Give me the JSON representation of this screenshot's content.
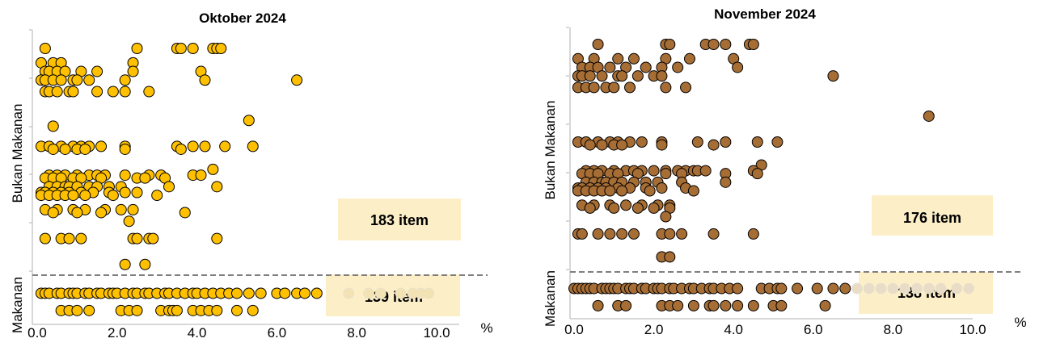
{
  "chart_data": [
    {
      "type": "scatter",
      "title": "Oktober 2024",
      "xlabel": "%",
      "ylabel_top": "Bukan Makanan",
      "ylabel_bottom": "Makanan",
      "xlim": [
        0,
        10
      ],
      "xticks": [
        "0.0",
        "2.0",
        "4.0",
        "6.0",
        "8.0",
        "10.0"
      ],
      "colors": {
        "point": "#FFC000",
        "point_faded": "#F3E3B4",
        "stroke": "#000000",
        "box": "#FCEFC8",
        "divider": "#7F7F7F"
      },
      "groups": [
        {
          "name": "Bukan Makanan",
          "count_label": "183 item",
          "rows": [
            {
              "y": 9.3,
              "x": [
                0.2,
                2.5,
                3.5,
                3.6,
                3.9,
                4.4,
                4.5,
                4.6
              ]
            },
            {
              "y": 8.8,
              "x": [
                0.1,
                0.4,
                0.6,
                2.4
              ]
            },
            {
              "y": 8.5,
              "x": [
                0.2,
                0.3,
                0.5,
                0.7,
                1.1,
                1.5,
                2.4,
                4.1
              ]
            },
            {
              "y": 8.2,
              "x": [
                0.1,
                0.2,
                0.4,
                0.6,
                0.9,
                1.0,
                1.3,
                2.2,
                4.2,
                6.5
              ]
            },
            {
              "y": 7.8,
              "x": [
                0.2,
                0.3,
                0.5,
                0.8,
                0.9,
                1.5,
                1.9,
                2.2,
                2.8
              ]
            },
            {
              "y": 6.8,
              "x": [
                5.3
              ]
            },
            {
              "y": 6.6,
              "x": [
                0.4
              ]
            },
            {
              "y": 5.9,
              "x": [
                0.1,
                0.3,
                0.6,
                0.9,
                1.1,
                1.3,
                1.6,
                2.2,
                3.5,
                3.9,
                4.2,
                4.7,
                5.4
              ]
            },
            {
              "y": 5.8,
              "x": [
                0.4,
                0.7,
                1.0,
                1.2,
                2.2,
                3.6
              ]
            },
            {
              "y": 5.1,
              "x": [
                4.4
              ]
            },
            {
              "y": 4.9,
              "x": [
                0.3,
                0.5,
                0.7,
                1.0,
                1.3,
                1.5,
                1.7,
                2.2,
                2.8,
                3.1,
                3.9,
                4.1
              ]
            },
            {
              "y": 4.8,
              "x": [
                0.2,
                0.4,
                0.6,
                0.9,
                1.1,
                1.6,
                2.5,
                2.7,
                3.2
              ]
            },
            {
              "y": 4.5,
              "x": [
                0.3,
                0.5,
                0.7,
                0.8,
                1.0,
                1.3,
                1.5,
                1.8,
                2.1,
                3.3,
                4.5
              ]
            },
            {
              "y": 4.3,
              "x": [
                0.1,
                0.2,
                0.4,
                0.6,
                0.8,
                1.1,
                1.4,
                1.8,
                2.2,
                2.5
              ]
            },
            {
              "y": 4.2,
              "x": [
                0.1,
                0.3,
                0.5,
                0.7,
                0.9,
                1.2,
                1.9,
                3.0
              ]
            },
            {
              "y": 3.7,
              "x": [
                0.2,
                0.5,
                0.9,
                1.2,
                1.7,
                2.1,
                2.4
              ]
            },
            {
              "y": 3.6,
              "x": [
                0.4,
                1.0,
                1.6,
                3.7
              ]
            },
            {
              "y": 3.3,
              "x": [
                2.3
              ]
            },
            {
              "y": 2.7,
              "x": [
                0.2,
                0.6,
                0.8,
                1.1,
                2.4,
                2.5,
                2.8,
                2.9,
                4.5
              ]
            },
            {
              "y": 1.8,
              "x": [
                2.2,
                2.7
              ]
            }
          ]
        },
        {
          "name": "Makanan",
          "count_label": "139 item",
          "rows": [
            {
              "y": 0.8,
              "x": [
                0.1,
                0.2,
                0.3,
                0.5,
                0.6,
                0.8,
                0.9,
                1.0,
                1.2,
                1.3,
                1.5,
                1.6,
                1.8,
                1.9,
                2.0,
                2.2,
                2.4,
                2.5,
                2.7,
                2.8,
                3.0,
                3.2,
                3.3,
                3.5,
                3.7,
                3.9,
                4.0,
                4.2,
                4.4,
                4.6,
                4.8,
                5.0,
                5.3,
                5.6,
                6.0,
                6.2,
                6.5,
                6.7,
                7.0
              ]
            },
            {
              "y": 0.8,
              "faded": true,
              "x": [
                7.8,
                8.3,
                8.6,
                9.1,
                9.4,
                9.6,
                9.8
              ]
            },
            {
              "y": 0.2,
              "x": [
                0.6,
                0.8,
                1.0,
                1.3,
                2.1,
                2.3,
                2.5,
                3.1,
                3.3,
                3.4,
                3.5,
                3.9,
                4.1,
                4.3,
                4.5,
                5.0,
                5.4
              ]
            }
          ]
        }
      ]
    },
    {
      "type": "scatter",
      "title": "November 2024",
      "xlabel": "%",
      "ylabel_top": "Bukan Makanan",
      "ylabel_bottom": "Makanan",
      "xlim": [
        0,
        10
      ],
      "xticks": [
        "0.0",
        "2.0",
        "4.0",
        "6.0",
        "8.0",
        "10.0"
      ],
      "colors": {
        "point": "#A66D35",
        "point_faded": "#E9DDC8",
        "stroke": "#000000",
        "box": "#FCEFC8",
        "divider": "#7F7F7F"
      },
      "groups": [
        {
          "name": "Bukan Makanan",
          "count_label": "176 item",
          "rows": [
            {
              "y": 9.3,
              "x": [
                0.6,
                2.3,
                2.4,
                3.3,
                3.5,
                3.8,
                4.4,
                4.5
              ]
            },
            {
              "y": 8.8,
              "x": [
                0.1,
                0.5,
                1.1,
                1.5,
                2.3,
                2.9,
                4.0
              ]
            },
            {
              "y": 8.5,
              "x": [
                0.2,
                0.4,
                0.6,
                0.9,
                1.3,
                1.8,
                2.2,
                2.6,
                4.1
              ]
            },
            {
              "y": 8.2,
              "x": [
                0.1,
                0.2,
                0.4,
                0.7,
                1.1,
                1.2,
                1.6,
                2.0,
                2.2,
                6.5
              ]
            },
            {
              "y": 7.8,
              "x": [
                0.1,
                0.3,
                0.5,
                0.8,
                1.0,
                1.4,
                2.3,
                2.8
              ]
            },
            {
              "y": 6.8,
              "x": [
                8.9
              ]
            },
            {
              "y": 5.9,
              "x": [
                0.1,
                0.3,
                0.6,
                0.9,
                1.1,
                1.4,
                1.7,
                2.2,
                3.1,
                3.8,
                4.6,
                5.1
              ]
            },
            {
              "y": 5.8,
              "x": [
                0.4,
                0.7,
                1.0,
                1.2,
                2.2,
                3.5
              ]
            },
            {
              "y": 5.1,
              "x": [
                4.7
              ]
            },
            {
              "y": 4.9,
              "x": [
                0.3,
                0.5,
                0.7,
                1.0,
                1.3,
                1.5,
                1.7,
                2.0,
                2.3,
                2.6,
                2.8,
                3.0,
                3.1,
                3.3,
                4.5
              ]
            },
            {
              "y": 4.8,
              "x": [
                0.2,
                0.4,
                0.6,
                0.9,
                1.1,
                1.6,
                2.3,
                2.7,
                3.8,
                4.6
              ]
            },
            {
              "y": 4.5,
              "x": [
                0.3,
                0.5,
                0.7,
                0.8,
                1.0,
                1.2,
                1.5,
                1.8,
                2.1,
                2.7,
                3.8
              ]
            },
            {
              "y": 4.3,
              "x": [
                0.1,
                0.2,
                0.4,
                0.6,
                0.8,
                1.1,
                1.4,
                1.8,
                2.2,
                2.8
              ]
            },
            {
              "y": 4.2,
              "x": [
                0.1,
                0.3,
                0.5,
                0.7,
                0.9,
                1.2,
                1.9,
                3.0
              ]
            },
            {
              "y": 3.7,
              "x": [
                0.2,
                0.5,
                0.9,
                1.3,
                1.7,
                2.1,
                2.4
              ]
            },
            {
              "y": 3.6,
              "x": [
                0.4,
                1.0,
                1.6,
                2.0,
                2.4
              ]
            },
            {
              "y": 3.3,
              "x": [
                2.3
              ]
            },
            {
              "y": 2.7,
              "x": [
                0.1,
                0.2,
                0.6,
                0.9,
                1.2,
                1.5,
                2.2,
                2.4,
                2.7,
                3.5,
                4.5
              ]
            },
            {
              "y": 1.9,
              "x": [
                2.2,
                2.4
              ]
            }
          ]
        },
        {
          "name": "Makanan",
          "count_label": "138 item",
          "rows": [
            {
              "y": 0.8,
              "x": [
                0.0,
                0.1,
                0.2,
                0.3,
                0.4,
                0.5,
                0.7,
                0.8,
                0.9,
                1.0,
                1.1,
                1.3,
                1.4,
                1.5,
                1.7,
                1.8,
                2.0,
                2.1,
                2.2,
                2.4,
                2.5,
                2.7,
                2.9,
                3.0,
                3.2,
                3.4,
                3.5,
                3.7,
                3.9,
                4.1,
                4.7,
                4.9,
                5.1,
                5.2,
                5.6,
                6.1,
                6.5,
                6.8
              ]
            },
            {
              "y": 0.8,
              "faded": true,
              "x": [
                7.1,
                7.4,
                7.7,
                8.0,
                8.3,
                8.6,
                8.9,
                9.2,
                9.6,
                9.9
              ]
            },
            {
              "y": 0.2,
              "x": [
                0.6,
                1.1,
                1.3,
                2.2,
                2.4,
                2.6,
                3.0,
                3.4,
                3.5,
                3.8,
                4.1,
                4.5,
                5.0,
                5.2,
                6.3
              ]
            }
          ]
        }
      ]
    }
  ]
}
